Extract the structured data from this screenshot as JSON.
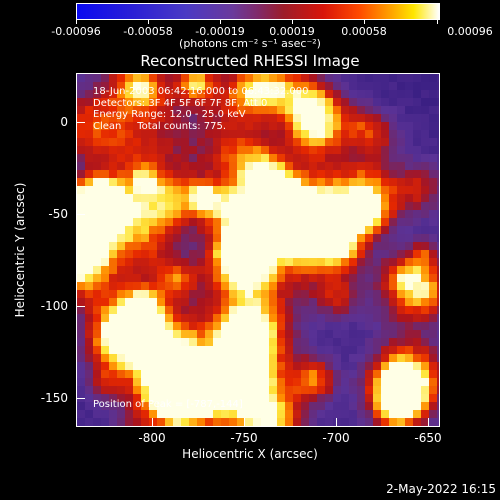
{
  "colorbar": {
    "tick_labels": [
      "-0.00096",
      "-0.00058",
      "-0.00019",
      "0.00019",
      "0.00058",
      "0.00096"
    ],
    "units": "(photons cm⁻² s⁻¹ asec⁻²)"
  },
  "title": "Reconstructed RHESSI Image",
  "overlay": {
    "line1": "18-Jun-2003 06:42:16.000 to 06:43:32.000",
    "line2": "Detectors: 3F 4F 5F 6F 7F 8F, Att 0",
    "line3": "Energy Range: 12.0 - 25.0 keV",
    "line4": "Clean     Total counts: 775.",
    "peak": "Position of Peak = [-787,-144]"
  },
  "axes": {
    "xlabel": "Heliocentric X (arcsec)",
    "ylabel": "Heliocentric Y (arcsec)",
    "x_ticks": [
      "-800",
      "-750",
      "-700",
      "-650"
    ],
    "y_ticks": [
      "0",
      "-50",
      "-100",
      "-150"
    ]
  },
  "footer": {
    "date": "2-May-2022 16:15"
  },
  "chart_data": {
    "type": "heatmap",
    "title": "Reconstructed RHESSI Image",
    "xlabel": "Heliocentric X (arcsec)",
    "ylabel": "Heliocentric Y (arcsec)",
    "xlim": [
      -847,
      -650
    ],
    "ylim": [
      -164,
      20
    ],
    "x_ticks": [
      -800,
      -750,
      -700,
      -650
    ],
    "y_ticks": [
      0,
      -50,
      -100,
      -150
    ],
    "colorbar_range": [
      -0.00096,
      0.00096
    ],
    "colorscale": "blue-purple-red-yellow-white",
    "bright_regions": [
      {
        "x": -690,
        "y": -45,
        "level": "high"
      },
      {
        "x": -787,
        "y": -144,
        "level": "peak"
      },
      {
        "x": -845,
        "y": -80,
        "level": "high"
      },
      {
        "x": -672,
        "y": -142,
        "level": "medium"
      }
    ],
    "peak_position": [
      -787,
      -144
    ]
  }
}
